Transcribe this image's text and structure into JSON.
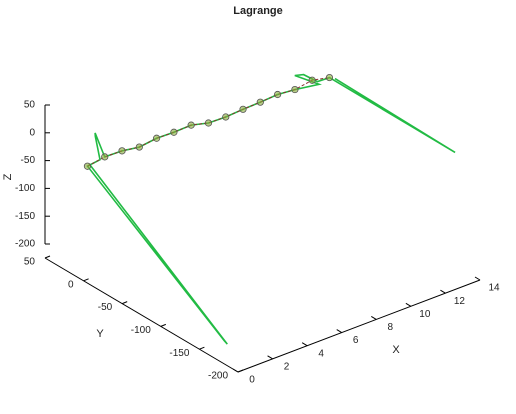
{
  "chart_data": {
    "type": "line3d",
    "title": "Lagrange",
    "xlabel": "X",
    "ylabel": "Y",
    "zlabel": "Z",
    "xlim": [
      0,
      14
    ],
    "ylim": [
      -200,
      50
    ],
    "zlim": [
      -200,
      50
    ],
    "xticks": [
      0,
      2,
      4,
      6,
      8,
      10,
      12,
      14
    ],
    "yticks": [
      50,
      0,
      -50,
      -100,
      -150,
      -200
    ],
    "zticks": [
      50,
      0,
      -50,
      -100,
      -150,
      -200
    ],
    "series": [
      {
        "color": "#22bb44",
        "style": "solid",
        "markers": false,
        "x": [
          0.1,
          0.45,
          0.55,
          0,
          0.5,
          0.9,
          0.8,
          1,
          2,
          3,
          4,
          5,
          6,
          7,
          8,
          9,
          10,
          11,
          12,
          13,
          13.2,
          13.4,
          13.3,
          14,
          13.5,
          14.1
        ],
        "y": [
          -5,
          -176,
          -170,
          -5,
          -10,
          5,
          3,
          -5,
          -5,
          -5,
          -5,
          -5,
          -5,
          -5,
          -5,
          -5,
          -5,
          -5,
          -5,
          -14,
          22,
          15,
          -5,
          -5,
          -179,
          -10
        ],
        "z": [
          -12,
          -200,
          -200,
          -15,
          -5,
          20,
          29,
          -10,
          -11,
          -16,
          -12,
          -13,
          -12,
          -20,
          -21,
          -19,
          -18,
          -16,
          -19,
          -14,
          -30,
          -25,
          -20,
          -21,
          -7,
          -20
        ]
      },
      {
        "color": "#8b2f2f",
        "style": "dashed",
        "markers": true,
        "marker_color": "#8aaa3a",
        "x": [
          0,
          1,
          2,
          3,
          4,
          5,
          6,
          7,
          8,
          9,
          10,
          11,
          12,
          13,
          14
        ],
        "y": [
          -5,
          -5,
          -5,
          -5,
          -5,
          -5,
          -5,
          -5,
          -5,
          -5,
          -5,
          -5,
          -5,
          -5,
          -5
        ],
        "z": [
          -15,
          -10,
          -11,
          -16,
          -12,
          -13,
          -12,
          -20,
          -21,
          -19,
          -18,
          -16,
          -19,
          -14,
          -21
        ]
      }
    ]
  }
}
